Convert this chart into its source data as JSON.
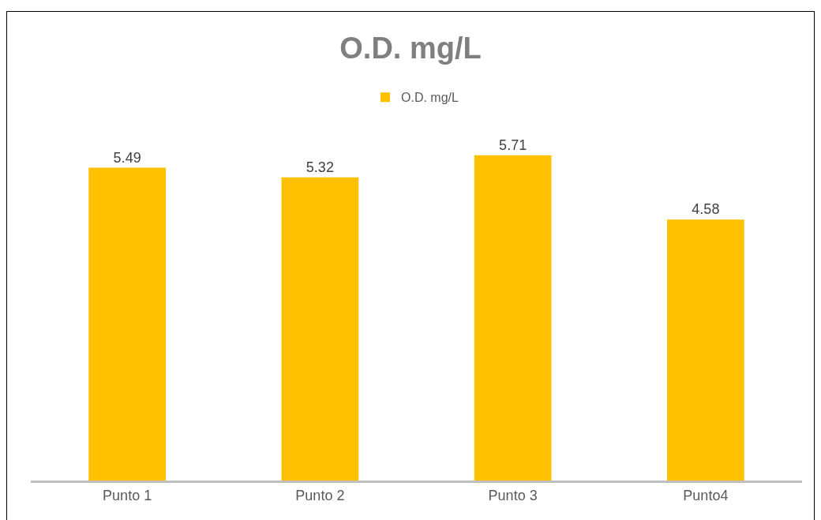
{
  "chart_data": {
    "type": "bar",
    "title": "O.D. mg/L",
    "categories": [
      "Punto 1",
      "Punto 2",
      "Punto 3",
      "Punto4"
    ],
    "series": [
      {
        "name": "O.D. mg/L",
        "color": "#ffc000",
        "values": [
          5.49,
          5.32,
          5.71,
          4.58
        ]
      }
    ],
    "data_labels": true,
    "grid": false,
    "legend": "top"
  }
}
